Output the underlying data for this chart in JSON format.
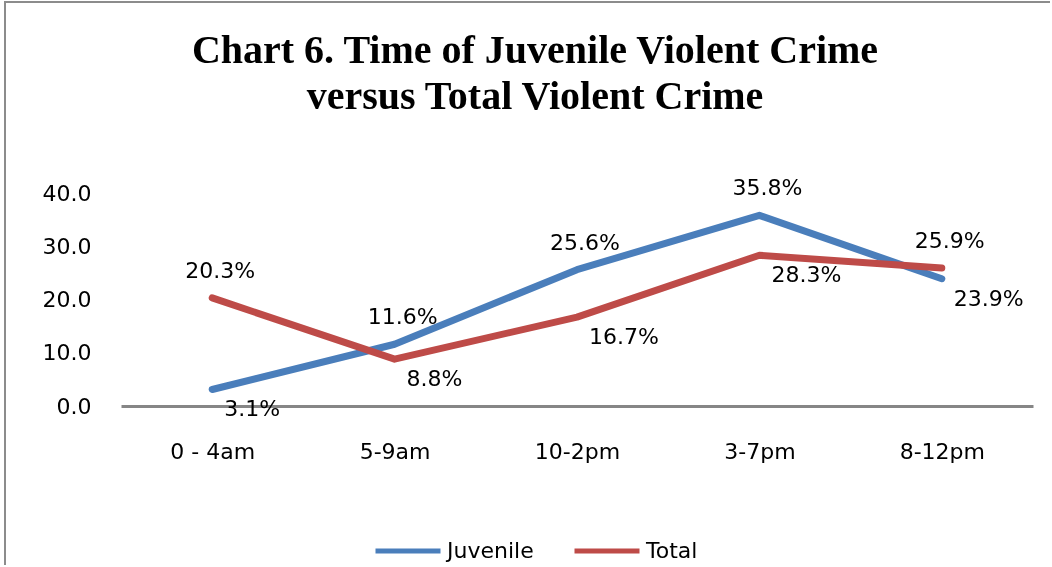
{
  "chart_data": {
    "type": "line",
    "title": "Chart 6. Time of Juvenile Violent Crime versus Total Violent Crime",
    "categories": [
      "0 - 4am",
      "5-9am",
      "10-2pm",
      "3-7pm",
      "8-12pm"
    ],
    "series": [
      {
        "name": "Juvenile",
        "color": "#4a7ebb",
        "values": [
          3.1,
          11.6,
          25.6,
          35.8,
          23.9
        ],
        "value_labels": [
          "3.1%",
          "11.6%",
          "25.6%",
          "35.8%",
          "23.9%"
        ]
      },
      {
        "name": "Total",
        "color": "#be4b48",
        "values": [
          20.3,
          8.8,
          16.7,
          28.3,
          25.9
        ],
        "value_labels": [
          "20.3%",
          "8.8%",
          "16.7%",
          "28.3%",
          "25.9%"
        ]
      }
    ],
    "ylim": [
      0,
      40
    ],
    "yticks": [
      {
        "value": 0,
        "label": "0.0"
      },
      {
        "value": 10,
        "label": "10.0"
      },
      {
        "value": 20,
        "label": "20.0"
      },
      {
        "value": 30,
        "label": "30.0"
      },
      {
        "value": 40,
        "label": "40.0"
      }
    ],
    "grid": false,
    "legend": "bottom"
  }
}
